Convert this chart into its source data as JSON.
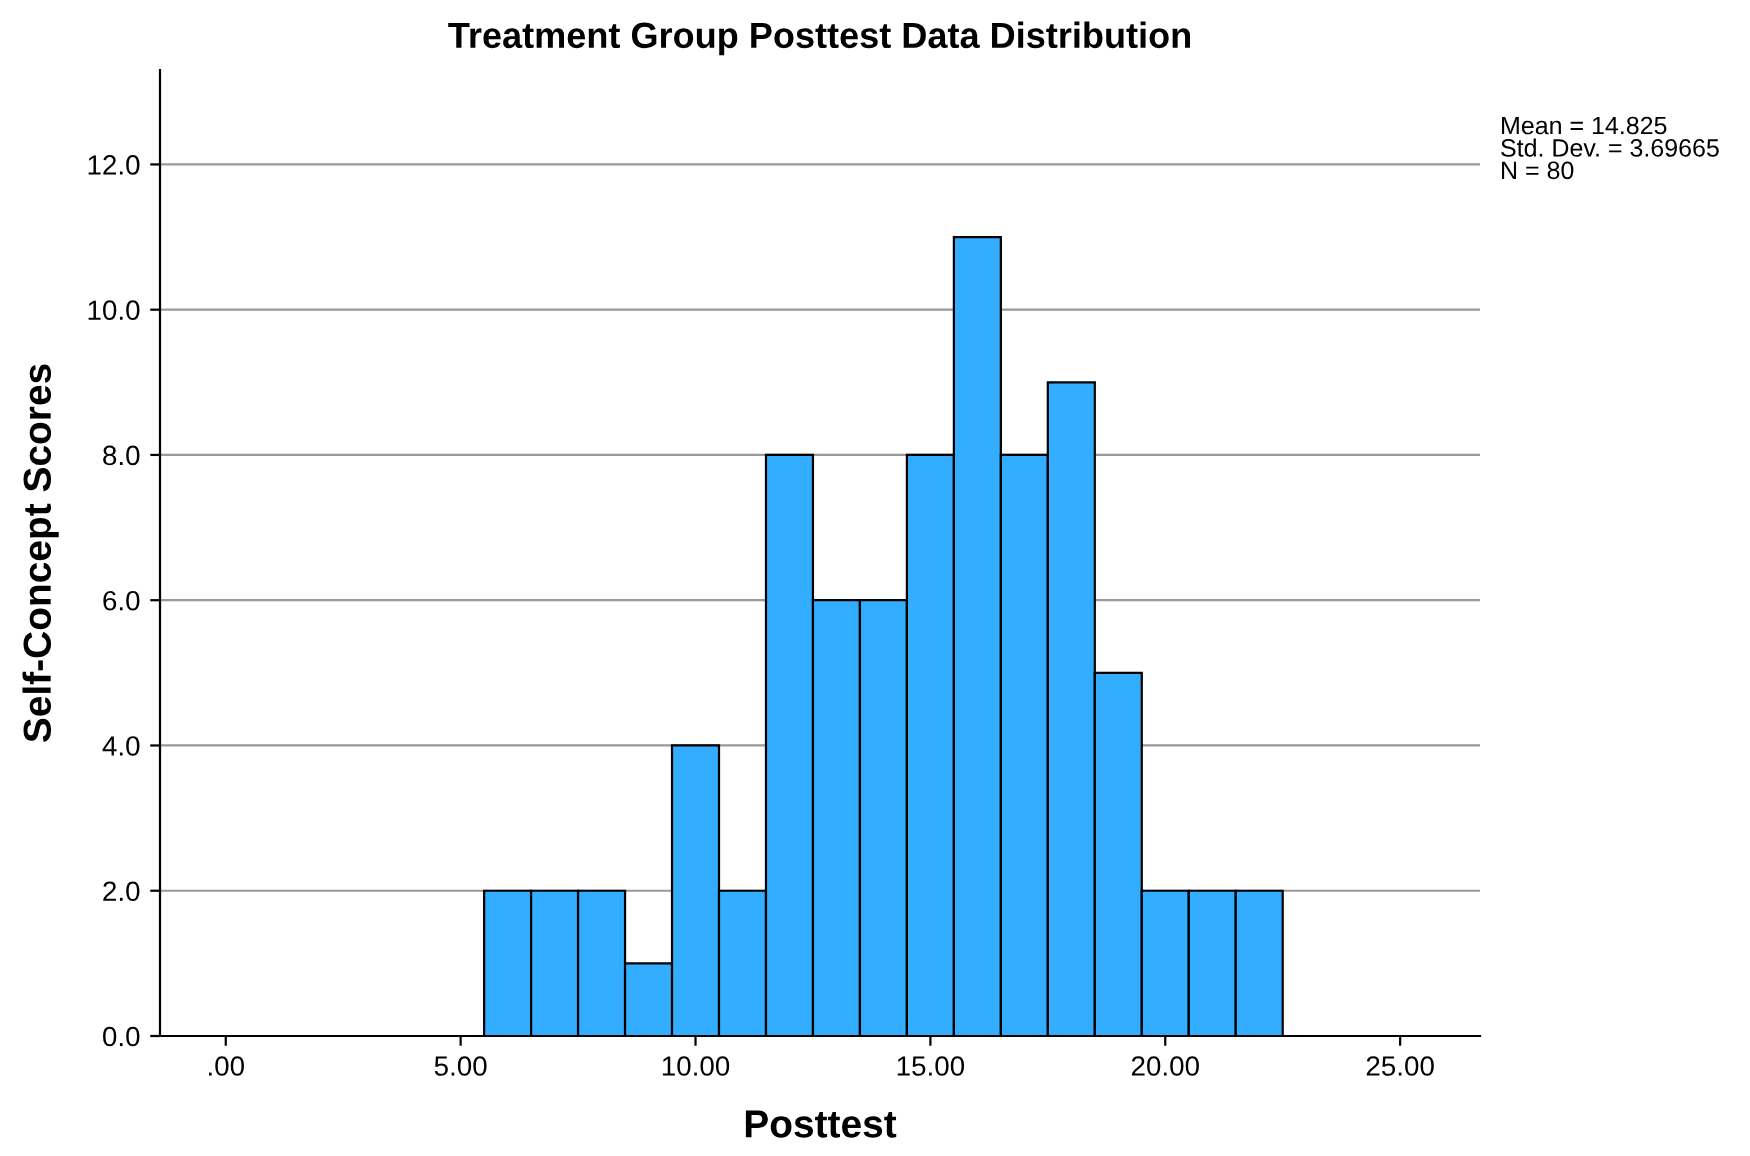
{
  "chart_data": {
    "type": "histogram",
    "title": "Treatment Group Posttest Data Distribution",
    "xlabel": "Posttest",
    "ylabel": "Self-Concept Scores",
    "bins": [
      5.5,
      6.5,
      7.5,
      8.5,
      9.5,
      10.5,
      11.5,
      12.5,
      13.5,
      14.5,
      15.5,
      16.5,
      17.5,
      18.5,
      19.5,
      20.5,
      21.5,
      22.5
    ],
    "values": [
      2,
      2,
      2,
      1,
      4,
      2,
      8,
      6,
      6,
      8,
      11,
      8,
      9,
      5,
      2,
      2,
      2
    ],
    "color": "#33adff",
    "xlim": [
      -1.4,
      26.7
    ],
    "ylim": [
      0,
      13.3
    ],
    "xticks": [
      {
        "value": 0,
        "label": ".00"
      },
      {
        "value": 5,
        "label": "5.00"
      },
      {
        "value": 10,
        "label": "10.00"
      },
      {
        "value": 15,
        "label": "15.00"
      },
      {
        "value": 20,
        "label": "20.00"
      },
      {
        "value": 25,
        "label": "25.00"
      }
    ],
    "yticks": [
      {
        "value": 0,
        "label": "0.0"
      },
      {
        "value": 2,
        "label": "2.0"
      },
      {
        "value": 4,
        "label": "4.0"
      },
      {
        "value": 6,
        "label": "6.0"
      },
      {
        "value": 8,
        "label": "8.0"
      },
      {
        "value": 10,
        "label": "10.0"
      },
      {
        "value": 12,
        "label": "12.0"
      }
    ],
    "grid": "y",
    "annotations": [
      "Mean = 14.825\nStd. Dev. = 3.69665\nN = 80"
    ]
  }
}
